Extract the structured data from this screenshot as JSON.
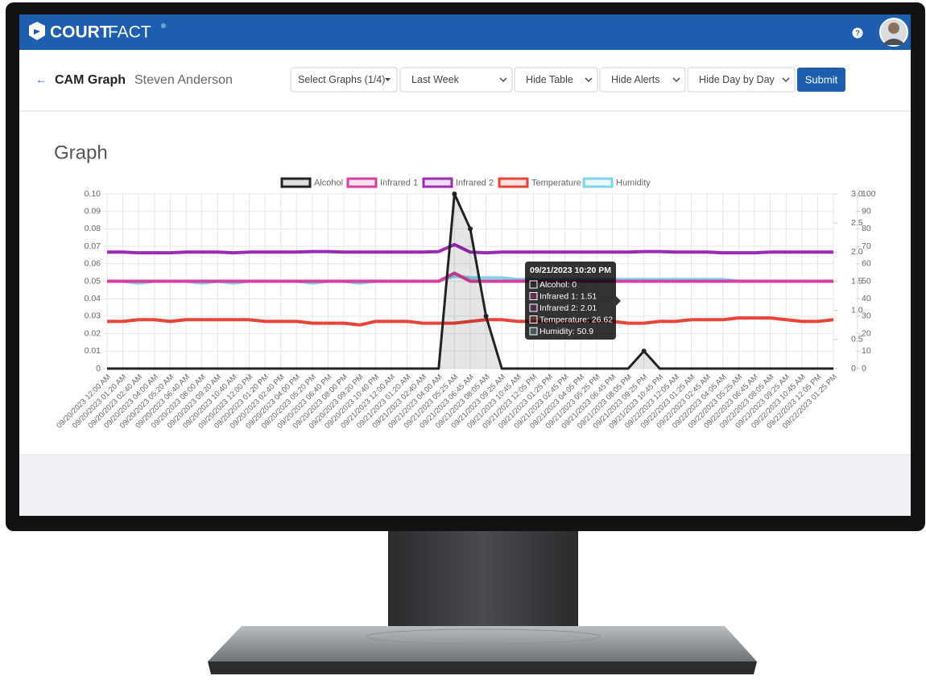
{
  "brand": {
    "court": "COURT",
    "fact": "FACT",
    "mark": "®"
  },
  "header": {
    "help": "?"
  },
  "toolbar": {
    "back": "←",
    "title": "CAM Graph",
    "subject": "Steven Anderson",
    "controls": [
      "Select Graphs (1/4)",
      "Last Week",
      "Hide Table",
      "Hide Alerts",
      "Hide Day by Day"
    ],
    "submit": "Submit"
  },
  "section_title": "Graph",
  "tooltip": {
    "title": "09/21/2023 10:20 PM",
    "lines": [
      "Alcohol: 0",
      "Infrared 1: 1.51",
      "Infrared 2: 2.01",
      "Temperature: 26.62",
      "Humidity: 50.9"
    ]
  },
  "chart_data": {
    "type": "line",
    "grid": true,
    "legend": "top",
    "categories": [
      "09/20/2023 12:00 AM",
      "09/20/2023 01:20 AM",
      "09/20/2023 02:40 AM",
      "09/20/2023 04:00 AM",
      "09/20/2023 05:20 AM",
      "09/20/2023 06:40 AM",
      "09/20/2023 08:00 AM",
      "09/20/2023 09:20 AM",
      "09/20/2023 10:40 AM",
      "09/20/2023 12:00 PM",
      "09/20/2023 01:20 PM",
      "09/20/2023 02:40 PM",
      "09/20/2023 04:00 PM",
      "09/20/2023 05:20 PM",
      "09/20/2023 06:40 PM",
      "09/20/2023 08:00 PM",
      "09/20/2023 09:20 PM",
      "09/20/2023 10:40 PM",
      "09/21/2023 12:00 AM",
      "09/21/2023 01:20 AM",
      "09/21/2023 02:40 AM",
      "09/21/2023 04:00 AM",
      "09/21/2023 05:25 AM",
      "09/21/2023 06:45 AM",
      "09/21/2023 08:05 AM",
      "09/21/2023 09:25 AM",
      "09/21/2023 10:45 AM",
      "09/21/2023 12:05 PM",
      "09/21/2023 01:25 PM",
      "09/21/2023 02:45 PM",
      "09/21/2023 04:05 PM",
      "09/21/2023 05:25 PM",
      "09/21/2023 06:45 PM",
      "09/21/2023 08:05 PM",
      "09/21/2023 09:25 PM",
      "09/21/2023 10:45 PM",
      "09/22/2023 12:05 AM",
      "09/22/2023 01:25 AM",
      "09/22/2023 02:45 AM",
      "09/22/2023 04:05 AM",
      "09/22/2023 05:25 AM",
      "09/22/2023 06:45 AM",
      "09/22/2023 08:05 AM",
      "09/22/2023 09:25 AM",
      "09/22/2023 10:45 AM",
      "09/22/2023 12:05 PM",
      "09/22/2023 01:25 PM"
    ],
    "ylim": [
      0,
      0.1
    ],
    "yticks": [
      0,
      0.01,
      0.02,
      0.03,
      0.04,
      0.05,
      0.06,
      0.07,
      0.08,
      0.09,
      {
        "value": 0.1,
        "label": "0.10"
      }
    ],
    "y2lim": [
      0,
      3
    ],
    "y2ticks": [
      0,
      0.5,
      {
        "value": 1,
        "label": "1.0"
      },
      1.5,
      {
        "value": 2,
        "label": "2.0"
      },
      2.5,
      {
        "value": 3,
        "label": "3.0"
      }
    ],
    "y3lim": [
      0,
      100
    ],
    "y3ticks": [
      0,
      10,
      20,
      30,
      40,
      50,
      60,
      70,
      80,
      90,
      100
    ],
    "series": [
      {
        "name": "Alcohol",
        "color": "#222222",
        "axis": "y",
        "values": [
          0,
          0,
          0,
          0,
          0,
          0,
          0,
          0,
          0,
          0,
          0,
          0,
          0,
          0,
          0,
          0,
          0,
          0,
          0,
          0,
          0,
          0,
          0.1,
          0.08,
          0.03,
          0,
          0,
          0,
          0,
          0,
          0,
          0,
          0,
          0,
          0.01,
          0,
          0,
          0,
          0,
          0,
          0,
          0,
          0,
          0,
          0,
          0,
          0
        ]
      },
      {
        "name": "Infrared 1",
        "color": "#d63fa0",
        "axis": "y2",
        "values": [
          1.5,
          1.5,
          1.5,
          1.5,
          1.5,
          1.5,
          1.5,
          1.5,
          1.5,
          1.5,
          1.5,
          1.5,
          1.5,
          1.5,
          1.5,
          1.5,
          1.5,
          1.5,
          1.5,
          1.5,
          1.5,
          1.5,
          1.64,
          1.5,
          1.5,
          1.5,
          1.5,
          1.5,
          1.5,
          1.5,
          1.5,
          1.5,
          1.5,
          1.5,
          1.5,
          1.5,
          1.5,
          1.5,
          1.5,
          1.5,
          1.5,
          1.5,
          1.5,
          1.5,
          1.5,
          1.5,
          1.5
        ]
      },
      {
        "name": "Infrared 2",
        "color": "#9b2ab5",
        "axis": "y2",
        "values": [
          2.0,
          2.0,
          1.99,
          1.99,
          1.99,
          2.0,
          2.0,
          2.0,
          1.99,
          2.0,
          2.0,
          2.0,
          2.0,
          2.01,
          2.01,
          2.0,
          2.0,
          2.0,
          2.0,
          2.0,
          2.0,
          2.01,
          2.13,
          2.0,
          1.99,
          2.0,
          2.0,
          2.0,
          2.0,
          2.0,
          2.0,
          2.0,
          2.0,
          2.0,
          2.01,
          2.01,
          2.0,
          2.0,
          2.0,
          1.99,
          1.99,
          1.99,
          2.0,
          2.0,
          2.0,
          2.0,
          2.0
        ]
      },
      {
        "name": "Temperature",
        "color": "#e8443a",
        "axis": "y3",
        "values": [
          27,
          27,
          28,
          28,
          27,
          28,
          28,
          28,
          28,
          28,
          27,
          27,
          27,
          26,
          26,
          26,
          25,
          27,
          27,
          27,
          26,
          26,
          26,
          27,
          28,
          28,
          27,
          27,
          27,
          27,
          27,
          27,
          27,
          26,
          26,
          27,
          27,
          28,
          28,
          28,
          29,
          29,
          29,
          28,
          27,
          27,
          28
        ]
      },
      {
        "name": "Humidity",
        "color": "#7fd3ea",
        "axis": "y3",
        "values": [
          50,
          50,
          49,
          50,
          50,
          50,
          49,
          50,
          49,
          50,
          50,
          50,
          50,
          49,
          50,
          50,
          49,
          50,
          50,
          50,
          50,
          50,
          53,
          52,
          52,
          52,
          51,
          51,
          51,
          51,
          51,
          51,
          51,
          51,
          51,
          51,
          51,
          51,
          51,
          51,
          50,
          50,
          50,
          50,
          50,
          50,
          50
        ]
      }
    ]
  }
}
